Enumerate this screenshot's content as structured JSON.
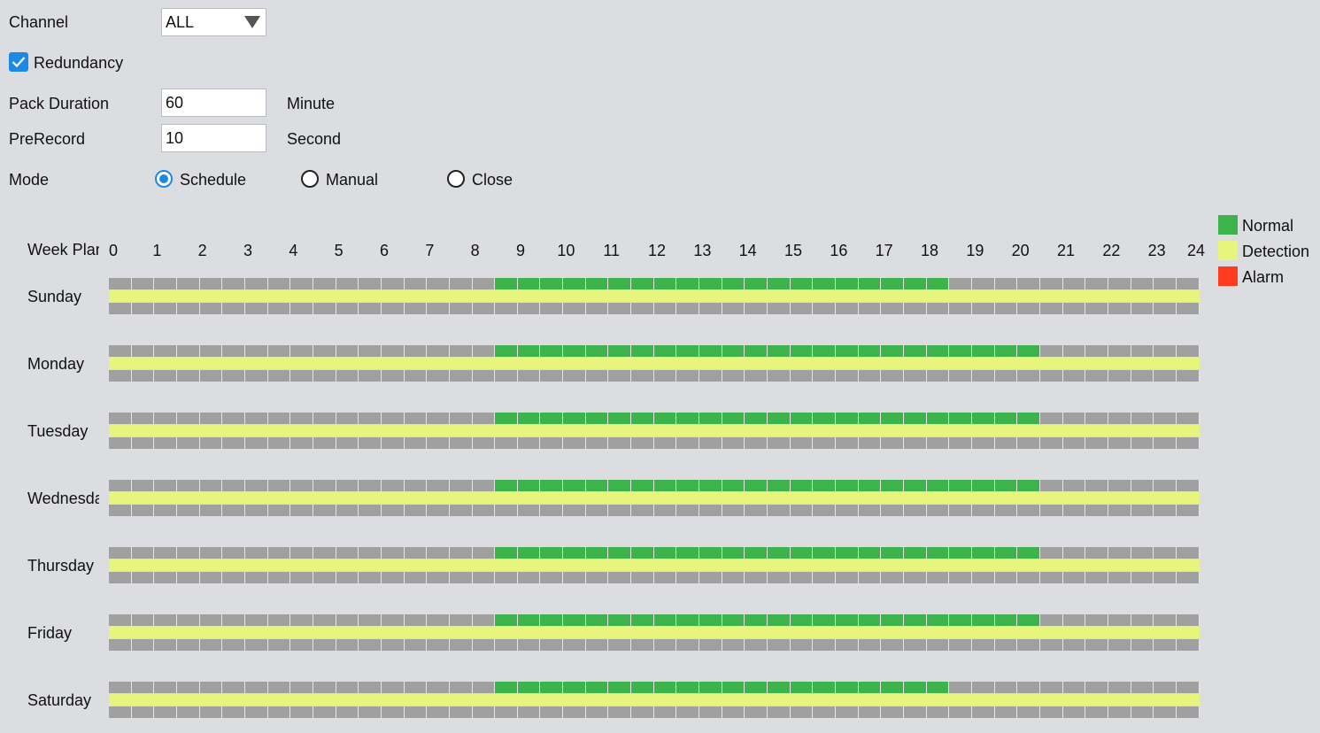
{
  "form": {
    "channel_label": "Channel",
    "channel_value": "ALL",
    "redundancy_label": "Redundancy",
    "redundancy_checked": true,
    "pack_duration_label": "Pack Duration",
    "pack_duration_value": "60",
    "pack_duration_unit": "Minute",
    "prerecord_label": "PreRecord",
    "prerecord_value": "10",
    "prerecord_unit": "Second",
    "mode_label": "Mode",
    "mode_options": [
      {
        "label": "Schedule",
        "checked": true
      },
      {
        "label": "Manual",
        "checked": false
      },
      {
        "label": "Close",
        "checked": false
      }
    ]
  },
  "schedule": {
    "header_label": "Week Plan",
    "hours": [
      "0",
      "1",
      "2",
      "3",
      "4",
      "5",
      "6",
      "7",
      "8",
      "9",
      "10",
      "11",
      "12",
      "13",
      "14",
      "15",
      "16",
      "17",
      "18",
      "19",
      "20",
      "21",
      "22",
      "23",
      "24"
    ],
    "days": [
      {
        "name": "Sunday",
        "normal": {
          "start": 8.5,
          "end": 18.5
        },
        "detection": {
          "start": 0,
          "end": 24
        },
        "alarm": null
      },
      {
        "name": "Monday",
        "normal": {
          "start": 8.5,
          "end": 20.5
        },
        "detection": {
          "start": 0,
          "end": 24
        },
        "alarm": null
      },
      {
        "name": "Tuesday",
        "normal": {
          "start": 8.5,
          "end": 20.5
        },
        "detection": {
          "start": 0,
          "end": 24
        },
        "alarm": null
      },
      {
        "name": "Wednesday",
        "normal": {
          "start": 8.5,
          "end": 20.5
        },
        "detection": {
          "start": 0,
          "end": 24
        },
        "alarm": null
      },
      {
        "name": "Thursday",
        "normal": {
          "start": 8.5,
          "end": 20.5
        },
        "detection": {
          "start": 0,
          "end": 24
        },
        "alarm": null
      },
      {
        "name": "Friday",
        "normal": {
          "start": 8.5,
          "end": 20.5
        },
        "detection": {
          "start": 0,
          "end": 24
        },
        "alarm": null
      },
      {
        "name": "Saturday",
        "normal": {
          "start": 8.5,
          "end": 18.5
        },
        "detection": {
          "start": 0,
          "end": 24
        },
        "alarm": null
      }
    ]
  },
  "legend": [
    {
      "label": "Normal",
      "color": "#3cb44b"
    },
    {
      "label": "Detection",
      "color": "#e8f57d"
    },
    {
      "label": "Alarm",
      "color": "#ff3b1f"
    }
  ],
  "colors": {
    "empty_cell": "#a0a0a0",
    "accent": "#1e88e5"
  }
}
